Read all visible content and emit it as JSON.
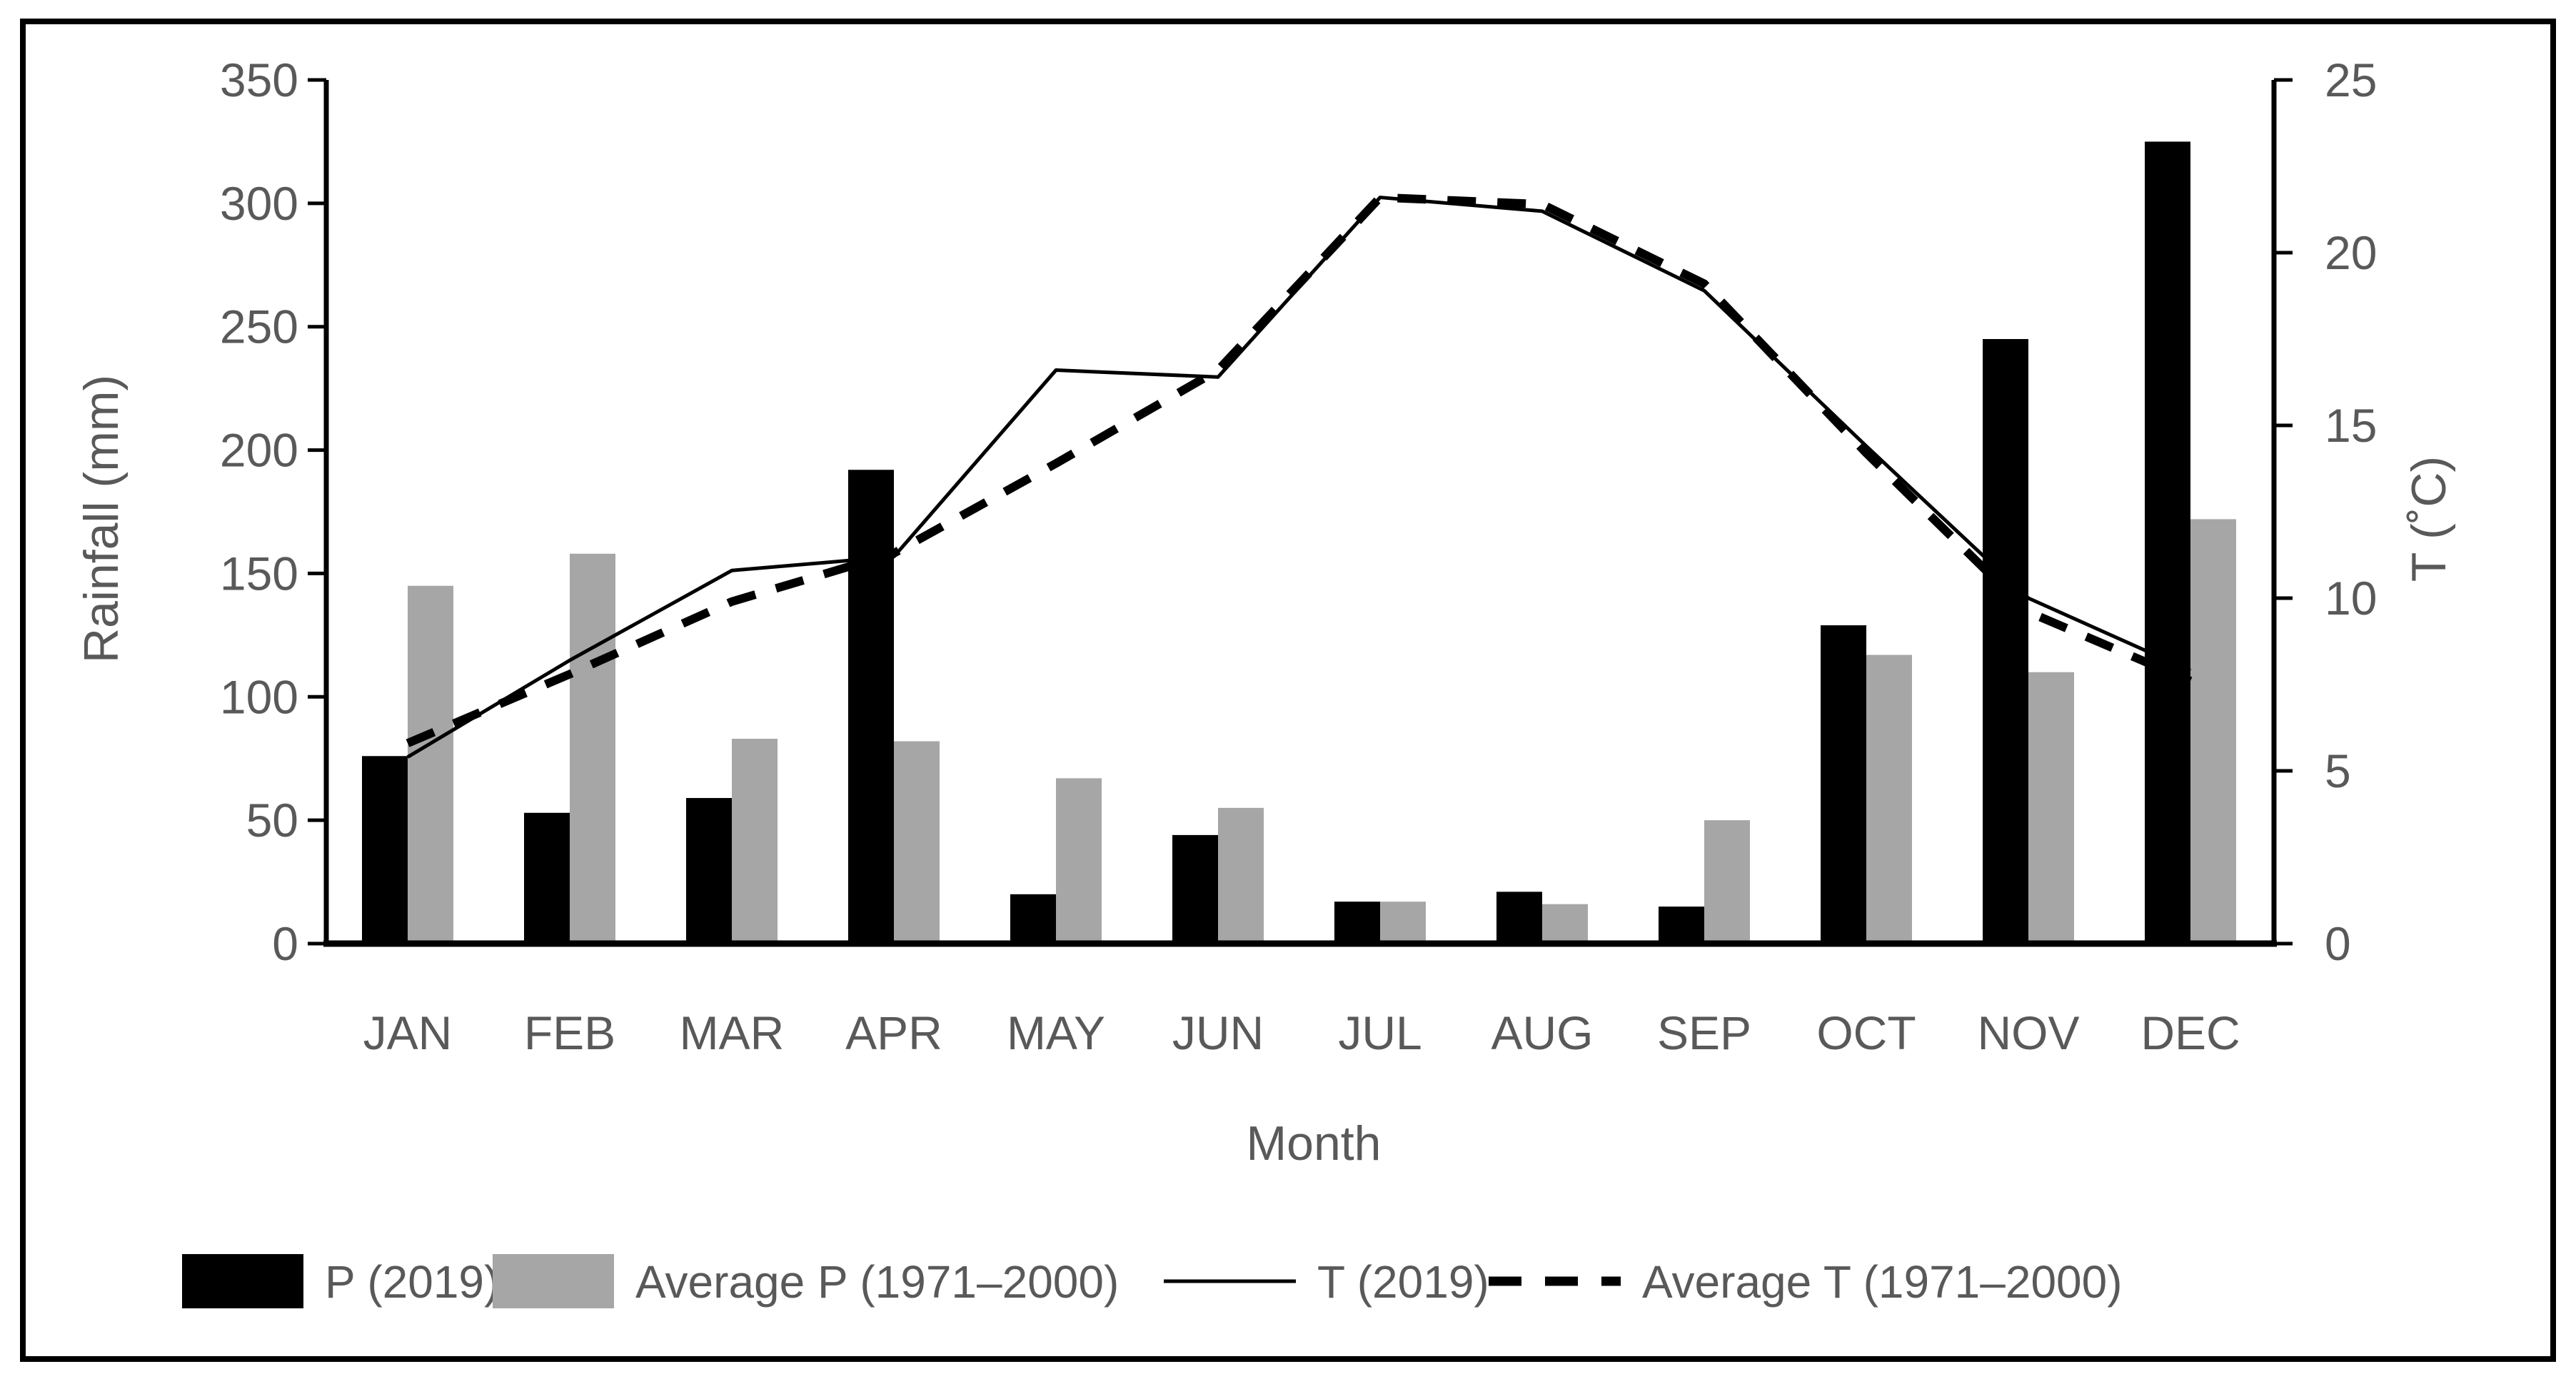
{
  "chart_data": {
    "type": "combo-bar-line",
    "title": "",
    "categories": [
      "JAN",
      "FEB",
      "MAR",
      "APR",
      "MAY",
      "JUN",
      "JUL",
      "AUG",
      "SEP",
      "OCT",
      "NOV",
      "DEC"
    ],
    "series": [
      {
        "name": "P (2019)",
        "type": "bar",
        "color": "#000000",
        "axis": "left",
        "values": [
          76,
          53,
          59,
          192,
          20,
          44,
          17,
          21,
          15,
          129,
          245,
          325
        ]
      },
      {
        "name": "Average P (1971–2000)",
        "type": "bar",
        "color": "#a6a6a6",
        "axis": "left",
        "values": [
          145,
          158,
          83,
          82,
          67,
          55,
          17,
          16,
          50,
          117,
          110,
          172
        ]
      },
      {
        "name": "T (2019)",
        "type": "line",
        "line_style": "solid",
        "color": "#000000",
        "axis": "right",
        "values": [
          5.4,
          8.2,
          10.8,
          11.2,
          16.6,
          16.4,
          21.6,
          21.2,
          18.9,
          14.4,
          10.0,
          7.9
        ]
      },
      {
        "name": "Average T (1971–2000)",
        "type": "line",
        "line_style": "dashed",
        "color": "#000000",
        "axis": "right",
        "values": [
          5.8,
          7.8,
          9.9,
          11.3,
          13.9,
          16.6,
          21.6,
          21.4,
          19.1,
          14.2,
          9.6,
          7.6
        ]
      }
    ],
    "left_axis": {
      "label": "Rainfall (mm)",
      "min": 0,
      "max": 350,
      "step": 50,
      "tick_labels": [
        "0",
        "50",
        "100",
        "150",
        "200",
        "250",
        "300",
        "350"
      ]
    },
    "right_axis": {
      "label": "T (˚C)",
      "min": 0,
      "max": 25,
      "step": 5,
      "tick_labels": [
        "0",
        "5",
        "10",
        "15",
        "20",
        "25"
      ]
    },
    "xlabel": "Month",
    "legend_position": "bottom",
    "grid": false
  },
  "style": {
    "background": "#ffffff",
    "border_color": "#000000",
    "text_color": "#595959",
    "axis_line_color": "#000000",
    "bar_black": "#000000",
    "bar_gray": "#a6a6a6"
  }
}
